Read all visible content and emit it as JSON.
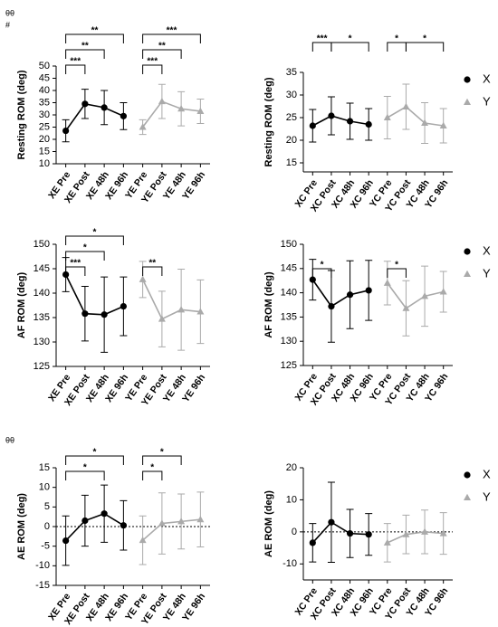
{
  "chart_data": [
    {
      "type": "line",
      "ylabel": "Resting ROM (deg)",
      "annotations": [
        "θθ",
        "#"
      ],
      "categories": [
        "XE Pre",
        "XE Post",
        "XE 48h",
        "XE 96h",
        "YE Pre",
        "YE Post",
        "YE 48h",
        "YE 96h"
      ],
      "series": [
        {
          "name": "X",
          "color": "#000000",
          "marker": "circle",
          "values": [
            23.5,
            34.5,
            33,
            29.5,
            null,
            null,
            null,
            null
          ],
          "errors": [
            4.5,
            6,
            7,
            5.5,
            null,
            null,
            null,
            null
          ]
        },
        {
          "name": "Y",
          "color": "#aaaaaa",
          "marker": "triangle",
          "values": [
            null,
            null,
            null,
            null,
            25,
            35.5,
            32.5,
            31.5
          ],
          "errors": [
            null,
            null,
            null,
            null,
            3,
            7,
            7,
            5
          ]
        }
      ],
      "brackets": [
        {
          "from": 0,
          "to": 1,
          "label": "***"
        },
        {
          "from": 0,
          "to": 2,
          "label": "**"
        },
        {
          "from": 0,
          "to": 3,
          "label": "**"
        },
        {
          "from": 4,
          "to": 5,
          "label": "***"
        },
        {
          "from": 4,
          "to": 6,
          "label": "**"
        },
        {
          "from": 4,
          "to": 7,
          "label": "***"
        }
      ],
      "ylim": [
        10,
        50
      ],
      "yticks": [
        10,
        15,
        20,
        25,
        30,
        35,
        40,
        45,
        50
      ],
      "legend": false
    },
    {
      "type": "line",
      "ylabel": "Resting ROM (deg)",
      "categories": [
        "XC Pre",
        "XC Post",
        "XC 48h",
        "XC 96h",
        "YC Pre",
        "YC Post",
        "YC 48h",
        "YC 96h"
      ],
      "series": [
        {
          "name": "X",
          "color": "#000000",
          "marker": "circle",
          "values": [
            23.2,
            25.4,
            24.2,
            23.5,
            null,
            null,
            null,
            null
          ],
          "errors": [
            3.6,
            4.2,
            4,
            3.5,
            null,
            null,
            null,
            null
          ]
        },
        {
          "name": "Y",
          "color": "#aaaaaa",
          "marker": "triangle",
          "values": [
            null,
            null,
            null,
            null,
            25,
            27.4,
            23.8,
            23.2
          ],
          "errors": [
            null,
            null,
            null,
            null,
            4.7,
            5,
            4.5,
            3.8
          ]
        }
      ],
      "brackets": [
        {
          "from": 0,
          "to": 1,
          "label": "***"
        },
        {
          "from": 1,
          "to": 3,
          "label": "*"
        },
        {
          "from": 4,
          "to": 5,
          "label": "*"
        },
        {
          "from": 5,
          "to": 7,
          "label": "*"
        }
      ],
      "ylim": [
        13,
        35
      ],
      "yticks": [
        15,
        20,
        25,
        30,
        35
      ],
      "legend": true
    },
    {
      "type": "line",
      "ylabel": "AF ROM (deg)",
      "categories": [
        "XE Pre",
        "XE Post",
        "XE 48h",
        "XE 96h",
        "YE Pre",
        "YE Post",
        "YE 48h",
        "YE 96h"
      ],
      "series": [
        {
          "name": "X",
          "color": "#000000",
          "marker": "circle",
          "values": [
            143.8,
            135.8,
            135.6,
            137.3,
            null,
            null,
            null,
            null
          ],
          "errors": [
            3.5,
            5.6,
            7.7,
            6,
            null,
            null,
            null,
            null
          ]
        },
        {
          "name": "Y",
          "color": "#aaaaaa",
          "marker": "triangle",
          "values": [
            null,
            null,
            null,
            null,
            142.8,
            134.7,
            136.6,
            136.2
          ],
          "errors": [
            null,
            null,
            null,
            null,
            3.7,
            5.7,
            8.3,
            6.5
          ]
        }
      ],
      "brackets": [
        {
          "from": 0,
          "to": 1,
          "label": "***"
        },
        {
          "from": 0,
          "to": 2,
          "label": "*"
        },
        {
          "from": 0,
          "to": 3,
          "label": "*"
        },
        {
          "from": 4,
          "to": 5,
          "label": "**"
        }
      ],
      "ylim": [
        125,
        150
      ],
      "yticks": [
        125,
        130,
        135,
        140,
        145,
        150
      ],
      "legend": false
    },
    {
      "type": "line",
      "ylabel": "AF ROM (deg)",
      "categories": [
        "XC Pre",
        "XC Post",
        "XC 48h",
        "XC 96h",
        "YC Pre",
        "YC Post",
        "YC 48h",
        "YC 96h"
      ],
      "series": [
        {
          "name": "X",
          "color": "#000000",
          "marker": "circle",
          "values": [
            142.7,
            137.2,
            139.6,
            140.5,
            null,
            null,
            null,
            null
          ],
          "errors": [
            4.2,
            7.4,
            7,
            6.2,
            null,
            null,
            null,
            null
          ]
        },
        {
          "name": "Y",
          "color": "#aaaaaa",
          "marker": "triangle",
          "values": [
            null,
            null,
            null,
            null,
            142,
            136.8,
            139.3,
            140.2
          ],
          "errors": [
            null,
            null,
            null,
            null,
            4.5,
            5.7,
            6.2,
            4.2
          ]
        }
      ],
      "brackets": [
        {
          "from": 0,
          "to": 1,
          "label": "*"
        },
        {
          "from": 4,
          "to": 5,
          "label": "*"
        }
      ],
      "ylim": [
        125,
        150
      ],
      "yticks": [
        125,
        130,
        135,
        140,
        145,
        150
      ],
      "legend": true
    },
    {
      "type": "line",
      "ylabel": "AE ROM (deg)",
      "annotations": [
        "θθ"
      ],
      "hline": 0,
      "categories": [
        "XE Pre",
        "XE Post",
        "XE 48h",
        "XE 96h",
        "YE Pre",
        "YE Post",
        "YE 48h",
        "YE 96h"
      ],
      "series": [
        {
          "name": "X",
          "color": "#000000",
          "marker": "circle",
          "values": [
            -3.6,
            1.5,
            3.3,
            0.3,
            null,
            null,
            null,
            null
          ],
          "errors": [
            6.3,
            6.5,
            7.3,
            6.3,
            null,
            null,
            null,
            null
          ]
        },
        {
          "name": "Y",
          "color": "#aaaaaa",
          "marker": "triangle",
          "values": [
            null,
            null,
            null,
            null,
            -3.5,
            0.8,
            1.3,
            1.8
          ],
          "errors": [
            null,
            null,
            null,
            null,
            6.2,
            7.8,
            7,
            7
          ]
        }
      ],
      "brackets": [
        {
          "from": 0,
          "to": 2,
          "label": "*"
        },
        {
          "from": 0,
          "to": 3,
          "label": "*"
        },
        {
          "from": 4,
          "to": 5,
          "label": "*"
        },
        {
          "from": 4,
          "to": 6,
          "label": "*"
        }
      ],
      "ylim": [
        -15,
        15
      ],
      "yticks": [
        -15,
        -10,
        -5,
        0,
        5,
        10,
        15
      ],
      "legend": false
    },
    {
      "type": "line",
      "ylabel": "AE ROM (deg)",
      "hline": 0,
      "categories": [
        "XC Pre",
        "XC Post",
        "XC 48h",
        "XC 96h",
        "YC Pre",
        "YC Post",
        "YC 48h",
        "YC 96h"
      ],
      "series": [
        {
          "name": "X",
          "color": "#000000",
          "marker": "circle",
          "values": [
            -3.4,
            3,
            -0.5,
            -0.8,
            null,
            null,
            null,
            null
          ],
          "errors": [
            6,
            12.5,
            7.5,
            6.5,
            null,
            null,
            null,
            null
          ]
        },
        {
          "name": "Y",
          "color": "#aaaaaa",
          "marker": "triangle",
          "values": [
            null,
            null,
            null,
            null,
            -3.4,
            -0.8,
            0,
            -0.5
          ],
          "errors": [
            null,
            null,
            null,
            null,
            6,
            6,
            6.8,
            6.5
          ]
        }
      ],
      "brackets": [],
      "ylim": [
        -15,
        20
      ],
      "yticks": [
        -10,
        0,
        10,
        20
      ],
      "legend": true
    }
  ]
}
